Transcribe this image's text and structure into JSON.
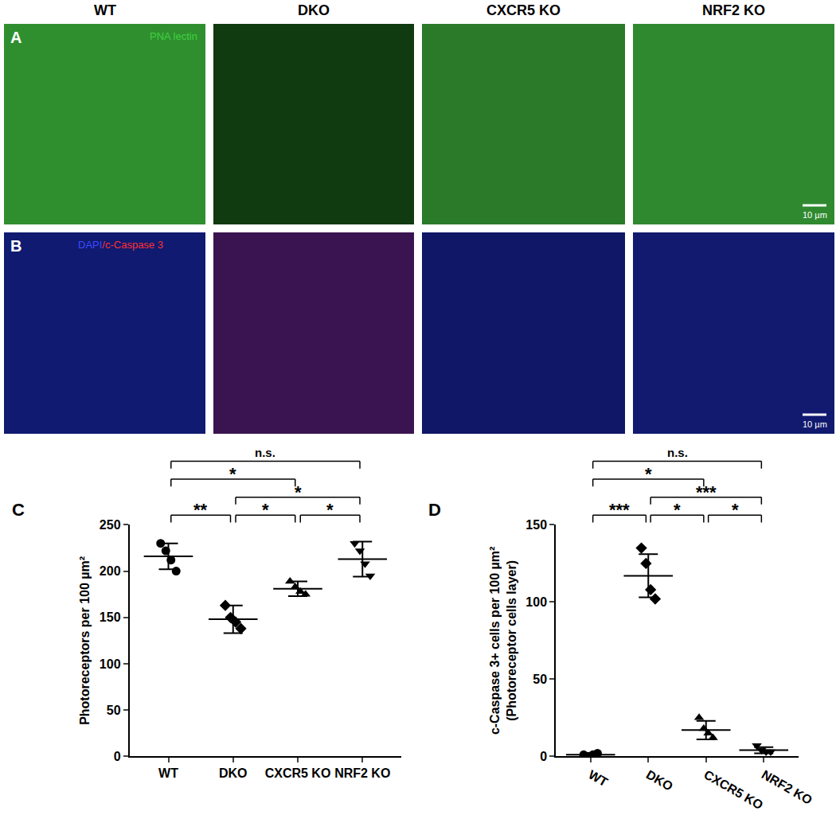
{
  "figure": {
    "columns": [
      "WT",
      "DKO",
      "CXCR5 KO",
      "NRF2 KO"
    ],
    "image_rows": [
      {
        "panel": "A",
        "stain": [
          {
            "text": "PNA lectin",
            "color": "#3fd13f"
          }
        ]
      },
      {
        "panel": "B",
        "stain": [
          {
            "text": "DAPI",
            "color": "#3b4bff"
          },
          {
            "text": "/c-Caspase 3",
            "color": "#ff3030"
          }
        ]
      }
    ],
    "scale_bar": "10 µm"
  },
  "chart_data": [
    {
      "type": "scatter",
      "panel": "C",
      "categories": [
        "WT",
        "DKO",
        "CXCR5 KO",
        "NRF2 KO"
      ],
      "ylabel": [
        "Photoreceptors per 100 µm²"
      ],
      "ylim": [
        0,
        250
      ],
      "yticks": [
        0,
        50,
        100,
        150,
        200,
        250
      ],
      "grid": false,
      "color": "#000000",
      "markers": [
        "circle",
        "diamond",
        "triangle-up",
        "triangle-down"
      ],
      "points": [
        [
          230,
          222,
          212,
          200
        ],
        [
          163,
          150,
          145,
          138
        ],
        [
          189,
          183,
          178,
          175
        ],
        [
          230,
          222,
          208,
          195
        ]
      ],
      "mean": [
        216,
        148,
        181,
        213
      ],
      "sd": [
        14,
        15,
        8,
        19
      ],
      "significance": [
        {
          "from": "WT",
          "to": "NRF2 KO",
          "text": "n.s."
        },
        {
          "from": "WT",
          "to": "CXCR5 KO",
          "text": "*"
        },
        {
          "from": "DKO",
          "to": "NRF2 KO",
          "text": "*"
        },
        {
          "from": "WT",
          "to": "DKO",
          "text": "**"
        },
        {
          "from": "DKO",
          "to": "CXCR5 KO",
          "text": "*"
        },
        {
          "from": "CXCR5 KO",
          "to": "NRF2 KO",
          "text": "*"
        }
      ]
    },
    {
      "type": "scatter",
      "panel": "D",
      "categories": [
        "WT",
        "DKO",
        "CXCR5 KO",
        "NRF2 KO"
      ],
      "ylabel": [
        "c-Caspase 3+ cells per 100 µm²",
        "(Photoreceptor cells layer)"
      ],
      "ylim": [
        0,
        150
      ],
      "yticks": [
        0,
        50,
        100,
        150
      ],
      "grid": false,
      "color": "#000000",
      "markers": [
        "circle",
        "diamond",
        "triangle-up",
        "triangle-down"
      ],
      "points": [
        [
          1,
          0,
          1,
          2
        ],
        [
          135,
          125,
          108,
          102
        ],
        [
          25,
          18,
          15,
          12
        ],
        [
          7,
          4,
          3,
          3
        ]
      ],
      "mean": [
        1,
        117,
        17,
        4
      ],
      "sd": [
        1,
        14,
        6,
        2
      ],
      "significance": [
        {
          "from": "WT",
          "to": "NRF2 KO",
          "text": "n.s."
        },
        {
          "from": "WT",
          "to": "CXCR5 KO",
          "text": "*"
        },
        {
          "from": "DKO",
          "to": "NRF2 KO",
          "text": "***"
        },
        {
          "from": "WT",
          "to": "DKO",
          "text": "***"
        },
        {
          "from": "DKO",
          "to": "CXCR5 KO",
          "text": "*"
        },
        {
          "from": "CXCR5 KO",
          "to": "NRF2 KO",
          "text": "*"
        }
      ]
    }
  ]
}
